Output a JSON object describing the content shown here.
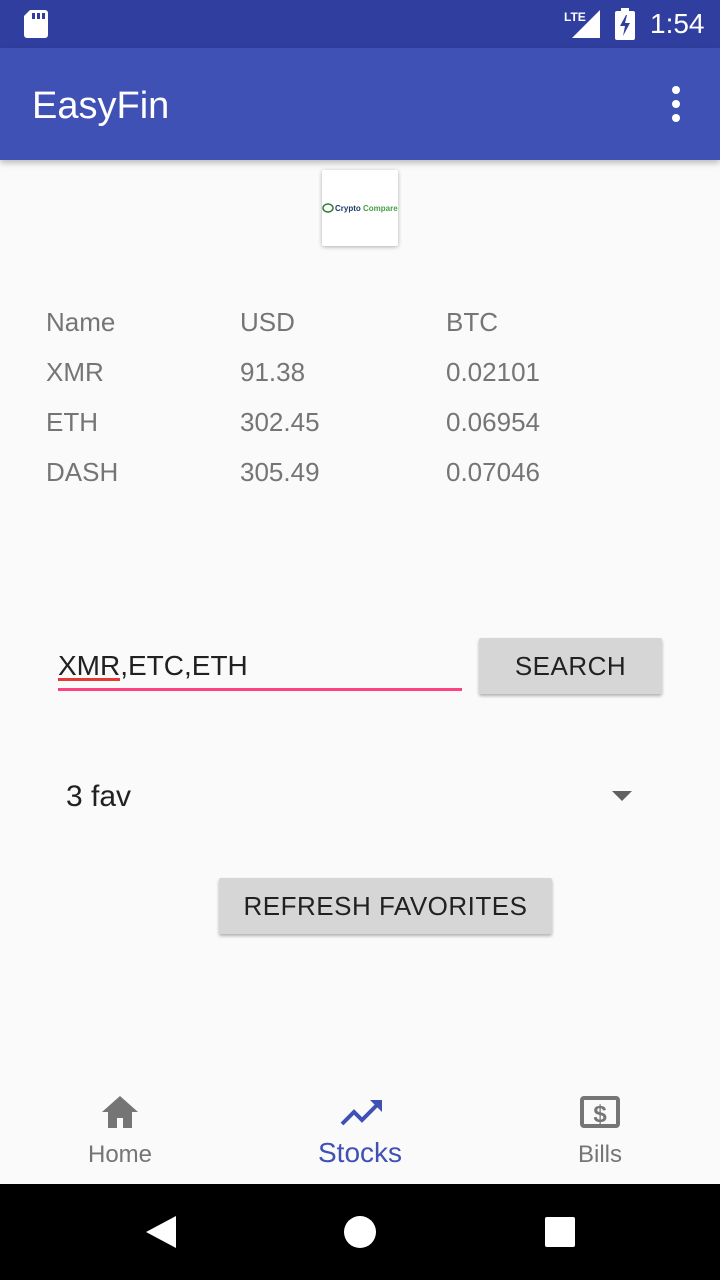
{
  "status_bar": {
    "time": "1:54",
    "network_label": "LTE",
    "icons": [
      "sd-card-icon",
      "lte-signal-icon",
      "battery-charging-icon"
    ]
  },
  "app_bar": {
    "title": "EasyFin",
    "menu_icon": "more-vert-icon",
    "color": "#3f51b5"
  },
  "logo": {
    "text_crypto": "Crypto",
    "text_compare": "Compare"
  },
  "price_table": {
    "headers": [
      "Name",
      "USD",
      "BTC"
    ],
    "rows": [
      [
        "XMR",
        "91.38",
        "0.02101"
      ],
      [
        "ETH",
        "302.45",
        "0.06954"
      ],
      [
        "DASH",
        "305.49",
        "0.07046"
      ]
    ]
  },
  "search": {
    "input_value": "XMR,ETC,ETH",
    "button_label": "SEARCH"
  },
  "favorites": {
    "selected": "3 fav",
    "refresh_label": "REFRESH FAVORITES"
  },
  "bottom_nav": {
    "items": [
      {
        "label": "Home",
        "icon": "home-icon"
      },
      {
        "label": "Stocks",
        "icon": "trending-up-icon"
      },
      {
        "label": "Bills",
        "icon": "bills-icon"
      }
    ],
    "active_index": 1,
    "active_color": "#3f51b5"
  },
  "accent_color": "#ff4081"
}
